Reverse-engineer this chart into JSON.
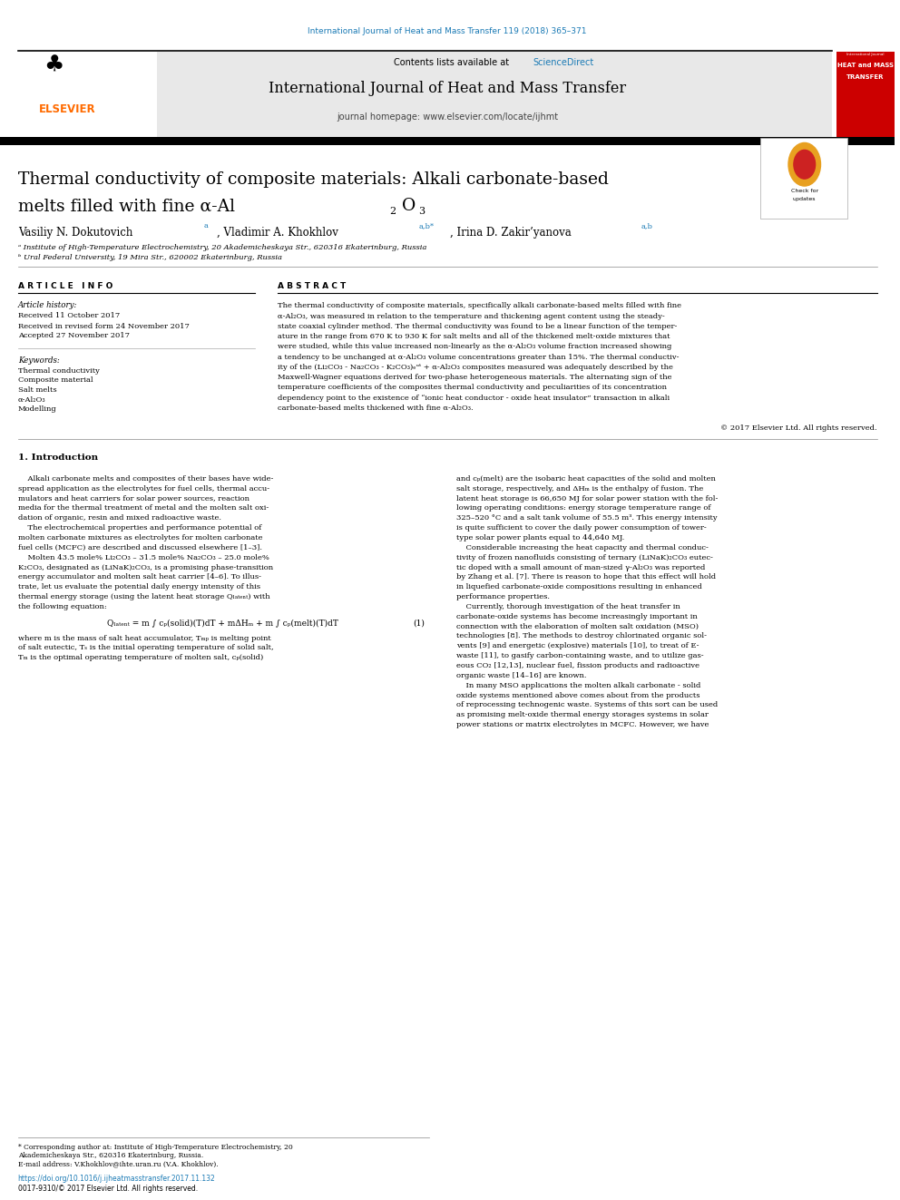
{
  "page_width": 9.92,
  "page_height": 13.23,
  "bg_color": "#ffffff",
  "top_citation": "International Journal of Heat and Mass Transfer 119 (2018) 365–371",
  "citation_color": "#1a7ab5",
  "header_bg": "#e8e8e8",
  "contents_text": "Contents lists available at ",
  "sciencedirect_text": "ScienceDirect",
  "sciencedirect_color": "#1a7ab5",
  "journal_name": "International Journal of Heat and Mass Transfer",
  "journal_homepage": "journal homepage: www.elsevier.com/locate/ijhmt",
  "elsevier_color": "#ff6b00",
  "article_title_line1": "Thermal conductivity of composite materials: Alkali carbonate-based",
  "article_title_line2": "melts filled with fine α-Al",
  "authors_sup1": "a",
  "authors_sup2": "a,b*",
  "authors_sup3": "a,b",
  "affil1": "ᵃ Institute of High-Temperature Electrochemistry, 20 Akademicheskaya Str., 620316 Ekaterinburg, Russia",
  "affil2": "ᵇ Ural Federal University, 19 Mira Str., 620002 Ekaterinburg, Russia",
  "article_info_title": "A R T I C L E   I N F O",
  "abstract_title": "A B S T R A C T",
  "article_history_title": "Article history:",
  "received": "Received 11 October 2017",
  "received_revised": "Received in revised form 24 November 2017",
  "accepted": "Accepted 27 November 2017",
  "keywords_title": "Keywords:",
  "keyword1": "Thermal conductivity",
  "keyword2": "Composite material",
  "keyword3": "Salt melts",
  "keyword4": "α-Al₂O₃",
  "keyword5": "Modelling",
  "copyright": "© 2017 Elsevier Ltd. All rights reserved.",
  "section1_title": "1. Introduction",
  "doi_text": "https://doi.org/10.1016/j.ijheatmasstransfer.2017.11.132",
  "issn_text": "0017-9310/© 2017 Elsevier Ltd. All rights reserved."
}
